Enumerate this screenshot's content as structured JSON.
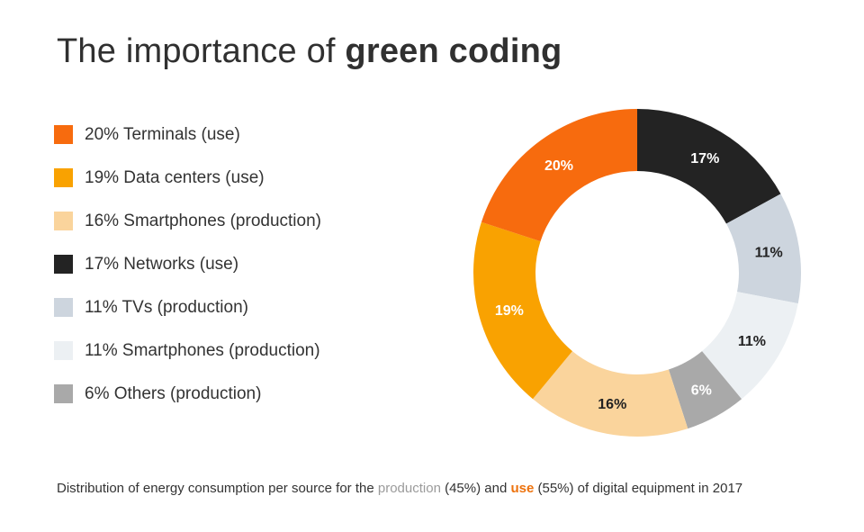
{
  "title": {
    "regular": "The importance of ",
    "bold": "green coding"
  },
  "legend": {
    "items": [
      {
        "text": "20% Terminals (use)",
        "color": "#F76B0E"
      },
      {
        "text": "19% Data centers (use)",
        "color": "#F9A201"
      },
      {
        "text": "16% Smartphones (production)",
        "color": "#FAD49C"
      },
      {
        "text": "17% Networks (use)",
        "color": "#232323"
      },
      {
        "text": "11% TVs (production)",
        "color": "#CDD5DE"
      },
      {
        "text": "11% Smartphones (production)",
        "color": "#ECF0F3"
      },
      {
        "text": "6% Others (production)",
        "color": "#A9A9A9"
      }
    ]
  },
  "chart_data": {
    "type": "pie",
    "subtype": "donut",
    "title": "The importance of green coding",
    "order": "clockwise-from-top",
    "legend_position": "left",
    "total_pct": 100,
    "segments": [
      {
        "name": "Networks (use)",
        "value_pct": 17,
        "color": "#232323",
        "label_text": "17%",
        "label_color": "#ffffff"
      },
      {
        "name": "TVs (production)",
        "value_pct": 11,
        "color": "#CDD5DE",
        "label_text": "11%",
        "label_color": "#222222"
      },
      {
        "name": "Smartphones (production)",
        "value_pct": 11,
        "color": "#ECF0F3",
        "label_text": "11%",
        "label_color": "#222222"
      },
      {
        "name": "Others (production)",
        "value_pct": 6,
        "color": "#A9A9A9",
        "label_text": "6%",
        "label_color": "#ffffff"
      },
      {
        "name": "Smartphones (production)",
        "value_pct": 16,
        "color": "#FAD49C",
        "label_text": "16%",
        "label_color": "#222222"
      },
      {
        "name": "Data centers (use)",
        "value_pct": 19,
        "color": "#F9A201",
        "label_text": "19%",
        "label_color": "#ffffff"
      },
      {
        "name": "Terminals (use)",
        "value_pct": 20,
        "color": "#F76B0E",
        "label_text": "20%",
        "label_color": "#ffffff"
      }
    ]
  },
  "caption": {
    "part1": "Distribution of energy consumption per source for the ",
    "production_word": "production",
    "part2": " (45%) and ",
    "use_word": "use",
    "part3": " (55%) of digital equipment in 2017"
  },
  "colors": {
    "background": "#ffffff",
    "title_text": "#303030",
    "body_text": "#333333",
    "caption_muted": "#9b9b9b",
    "caption_accent": "#ed720d"
  }
}
